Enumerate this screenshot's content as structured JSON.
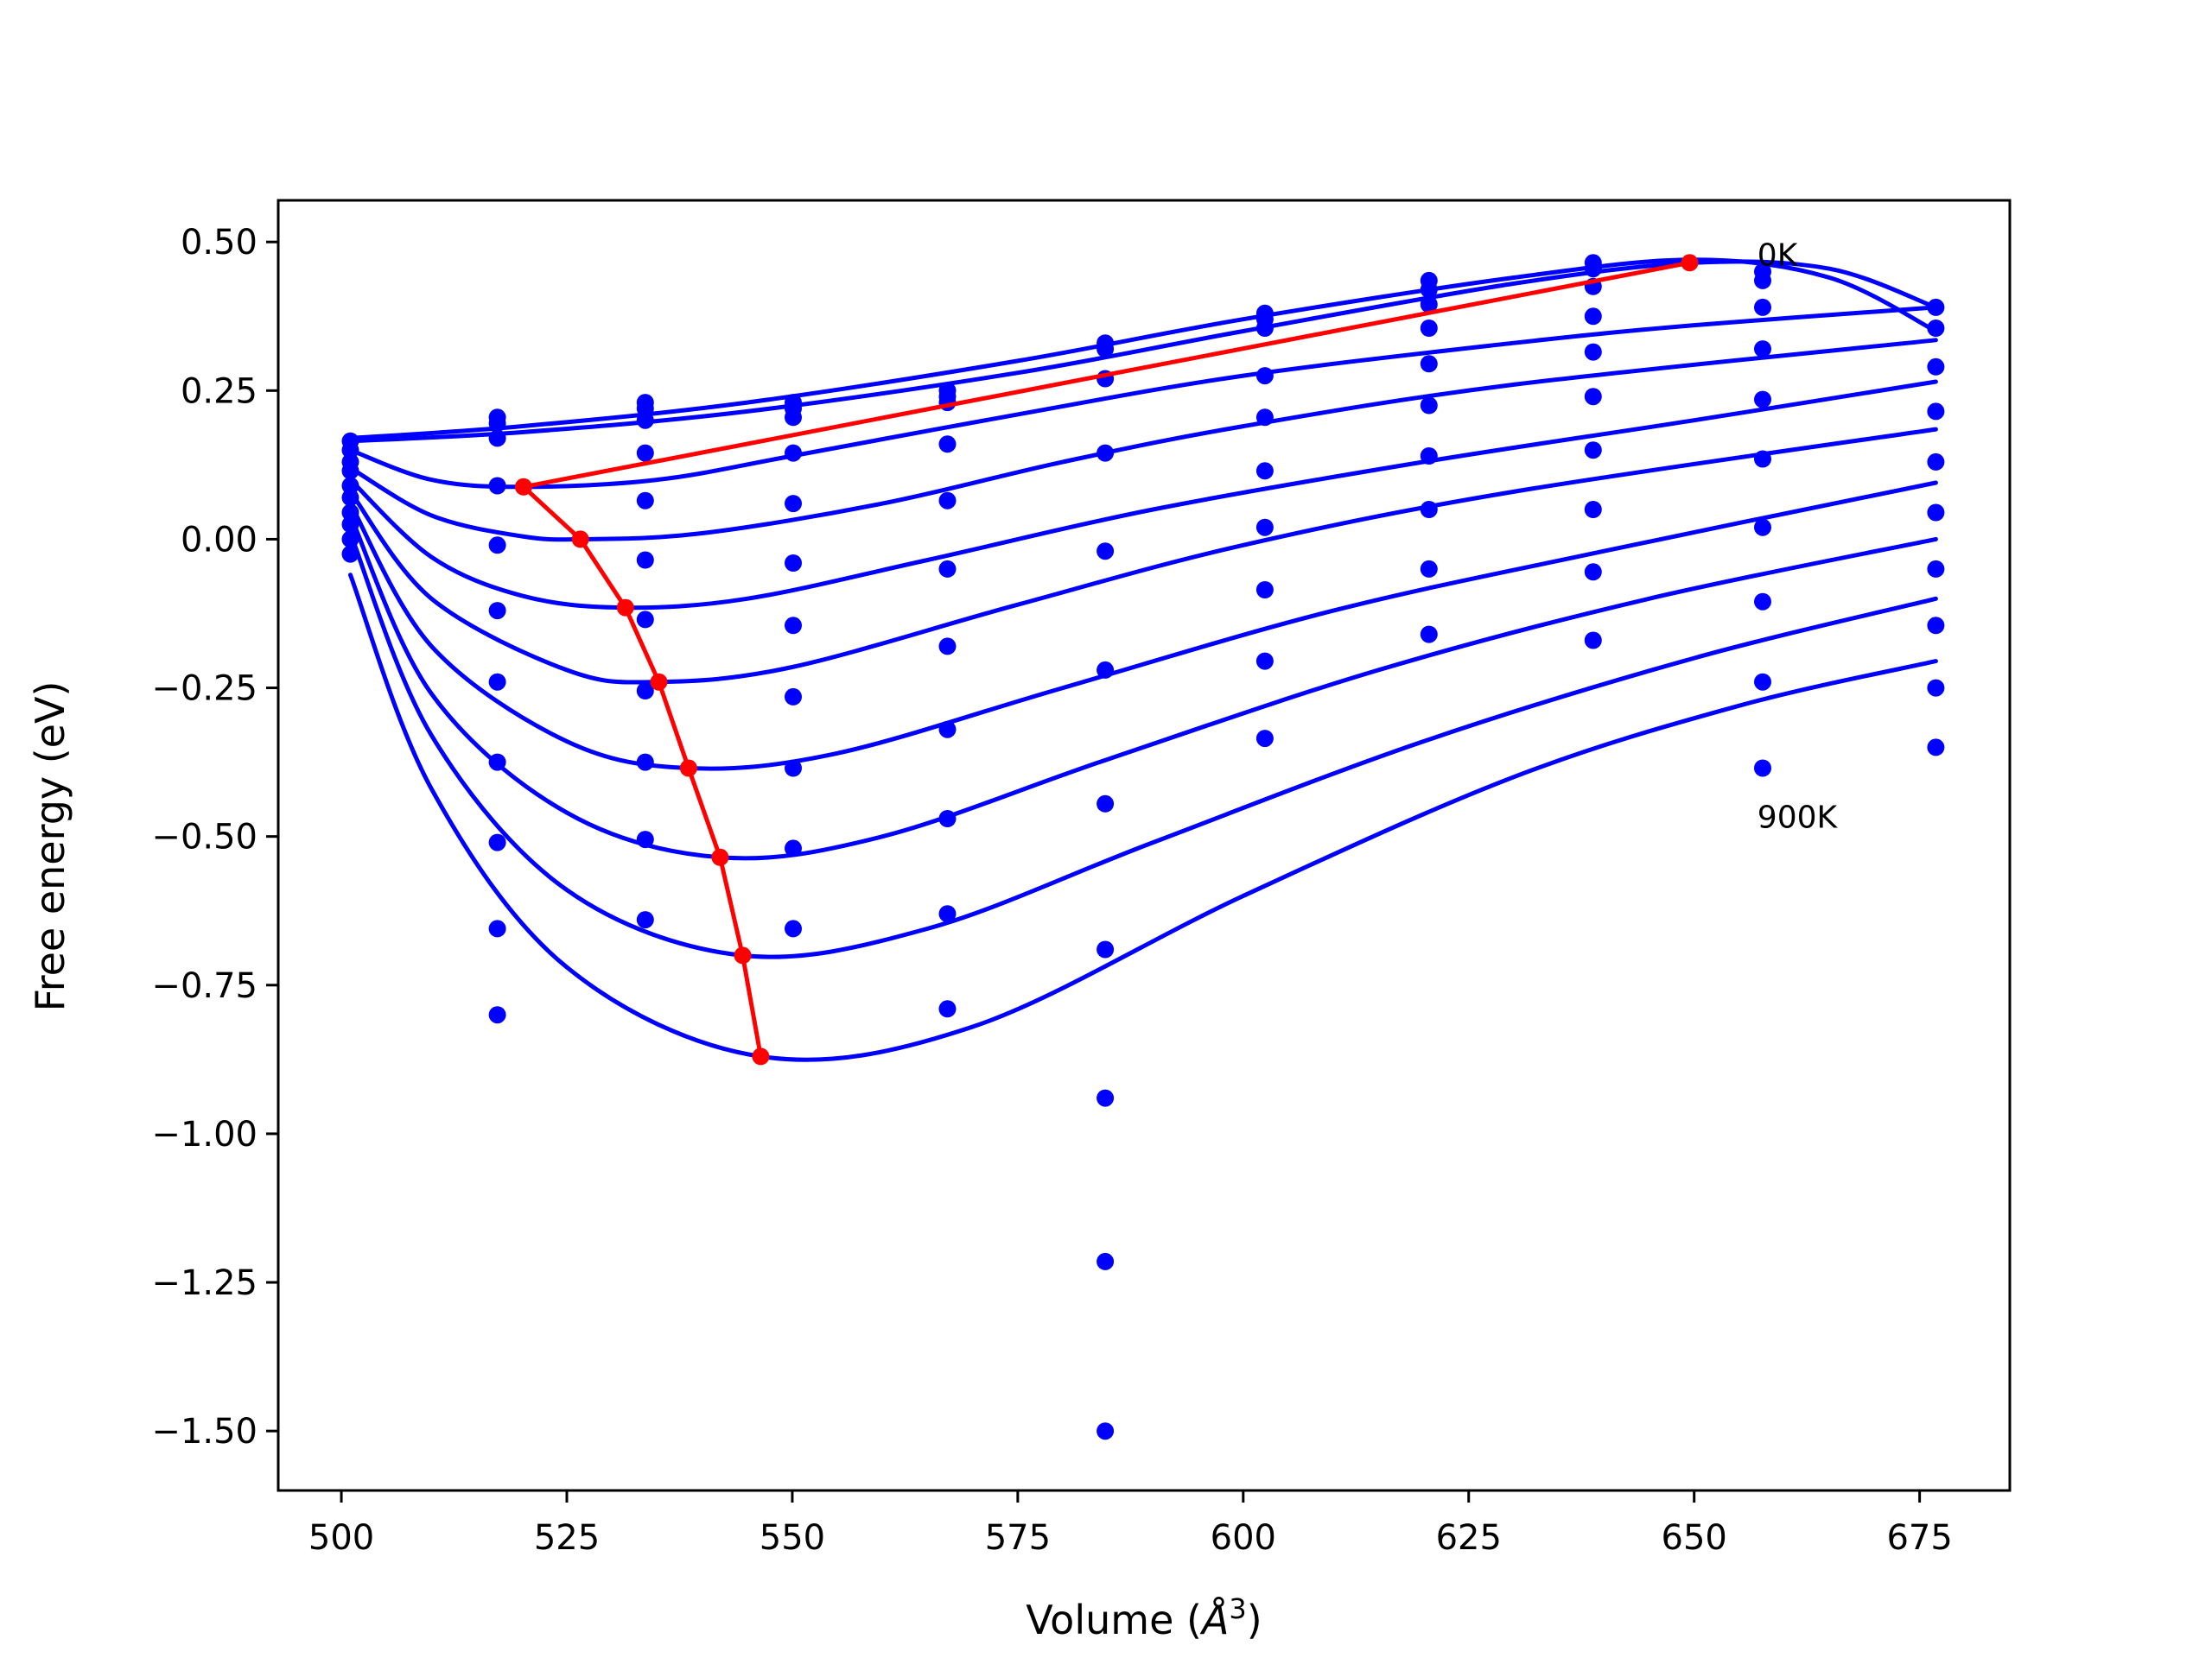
{
  "chart_data": {
    "type": "line",
    "xlabel_prefix": "Volume (",
    "xlabel_unit": "Å",
    "xlabel_exp": "3",
    "xlabel_suffix": ")",
    "ylabel": "Free energy (eV)",
    "xlim": [
      493,
      685
    ],
    "ylim": [
      -1.6,
      0.57
    ],
    "x_ticks": [
      500,
      525,
      550,
      575,
      600,
      625,
      650,
      675
    ],
    "y_ticks": [
      0.5,
      0.25,
      0.0,
      -0.25,
      -0.5,
      -0.75,
      -1.0,
      -1.25,
      -1.5
    ],
    "x_tick_labels": [
      "500",
      "525",
      "550",
      "575",
      "600",
      "625",
      "650",
      "675"
    ],
    "y_tick_labels": [
      "0.50",
      "0.25",
      "0.00",
      "−0.25",
      "−0.50",
      "−0.75",
      "−1.00",
      "−1.25",
      "−1.50"
    ],
    "grid": false,
    "colors": {
      "fit": "#0000ff",
      "points": "#0000ff",
      "minimum": "#ff0000"
    },
    "annotations": [
      {
        "text": "0K",
        "x": 657,
        "y": 0.46
      },
      {
        "text": "900K",
        "x": 657,
        "y": -0.485
      }
    ],
    "sample_volumes": [
      501,
      517.3,
      533.7,
      550.1,
      567.2,
      584.7,
      602.4,
      620.6,
      638.8,
      657.6,
      676.8
    ],
    "point_series": [
      {
        "values": [
          0.165,
          0.205,
          0.23,
          0.23,
          0.25,
          0.33,
          0.38,
          0.435,
          0.465,
          0.45,
          0.39
        ]
      },
      {
        "values": [
          0.15,
          0.195,
          0.22,
          0.22,
          0.24,
          0.32,
          0.37,
          0.42,
          0.455,
          0.435,
          0.355
        ]
      },
      {
        "values": [
          0.13,
          0.17,
          0.2,
          0.205,
          0.23,
          0.27,
          0.355,
          0.395,
          0.425,
          0.39,
          0.29
        ]
      },
      {
        "values": [
          0.115,
          0.09,
          0.145,
          0.145,
          0.16,
          0.145,
          0.275,
          0.355,
          0.375,
          0.32,
          0.215
        ]
      },
      {
        "values": [
          0.09,
          -0.01,
          0.065,
          0.06,
          0.065,
          -0.02,
          0.205,
          0.295,
          0.315,
          0.235,
          0.13
        ]
      },
      {
        "values": [
          0.07,
          -0.12,
          -0.035,
          -0.04,
          -0.05,
          -0.22,
          0.115,
          0.225,
          0.24,
          0.135,
          0.045
        ]
      },
      {
        "values": [
          0.045,
          -0.24,
          -0.135,
          -0.145,
          -0.18,
          -0.445,
          0.02,
          0.14,
          0.15,
          0.02,
          -0.05
        ]
      },
      {
        "values": [
          0.025,
          -0.375,
          -0.255,
          -0.265,
          -0.32,
          -0.69,
          -0.085,
          0.05,
          0.05,
          -0.105,
          -0.145
        ]
      },
      {
        "values": [
          0.0,
          -0.51,
          -0.375,
          -0.385,
          -0.47,
          -0.94,
          -0.205,
          -0.05,
          -0.055,
          -0.24,
          -0.25
        ]
      },
      {
        "values": [
          -0.025,
          -0.655,
          -0.505,
          -0.52,
          -0.63,
          -1.215,
          -0.335,
          -0.16,
          -0.17,
          -0.385,
          -0.35
        ]
      },
      {
        "values": [
          null,
          -0.8,
          -0.64,
          -0.655,
          -0.79,
          -1.5,
          null,
          null,
          null,
          null,
          null
        ]
      }
    ],
    "fit_curves": [
      {
        "x": [
          501,
          520,
          545,
          575,
          600,
          630,
          650,
          665,
          676.8
        ],
        "y": [
          0.17,
          0.19,
          0.23,
          0.3,
          0.37,
          0.44,
          0.47,
          0.44,
          0.35
        ]
      },
      {
        "x": [
          501,
          520,
          545,
          575,
          600,
          630,
          650,
          665,
          676.8
        ],
        "y": [
          0.165,
          0.18,
          0.215,
          0.28,
          0.35,
          0.43,
          0.465,
          0.455,
          0.39
        ]
      },
      {
        "x": [
          501,
          510,
          520,
          535,
          550,
          575,
          600,
          630,
          650,
          676.8
        ],
        "y": [
          0.15,
          0.1,
          0.088,
          0.1,
          0.14,
          0.21,
          0.275,
          0.33,
          0.36,
          0.39
        ]
      },
      {
        "x": [
          501,
          510,
          520,
          527,
          540,
          560,
          580,
          600,
          630,
          676.8
        ],
        "y": [
          0.12,
          0.04,
          0.005,
          0.0,
          0.01,
          0.06,
          0.13,
          0.19,
          0.26,
          0.335
        ]
      },
      {
        "x": [
          501,
          510,
          520,
          531,
          545,
          565,
          590,
          620,
          650,
          676.8
        ],
        "y": [
          0.1,
          -0.03,
          -0.095,
          -0.115,
          -0.1,
          -0.035,
          0.05,
          0.13,
          0.2,
          0.265
        ]
      },
      {
        "x": [
          501,
          510,
          525,
          535,
          550,
          575,
          600,
          630,
          676.8
        ],
        "y": [
          0.08,
          -0.1,
          -0.22,
          -0.24,
          -0.215,
          -0.11,
          -0.01,
          0.08,
          0.185
        ]
      },
      {
        "x": [
          501,
          510,
          525,
          538.5,
          555,
          580,
          610,
          640,
          676.8
        ],
        "y": [
          0.06,
          -0.18,
          -0.34,
          -0.385,
          -0.36,
          -0.25,
          -0.12,
          -0.02,
          0.095
        ]
      },
      {
        "x": [
          501,
          510,
          525,
          542,
          560,
          585,
          615,
          645,
          676.8
        ],
        "y": [
          0.04,
          -0.26,
          -0.46,
          -0.535,
          -0.5,
          -0.37,
          -0.22,
          -0.1,
          0.0
        ]
      },
      {
        "x": [
          501,
          510,
          525,
          544.5,
          565,
          590,
          620,
          650,
          676.8
        ],
        "y": [
          0.01,
          -0.33,
          -0.59,
          -0.7,
          -0.655,
          -0.51,
          -0.34,
          -0.2,
          -0.1
        ]
      },
      {
        "x": [
          501,
          510,
          525,
          546.5,
          570,
          600,
          630,
          655,
          676.8
        ],
        "y": [
          -0.06,
          -0.42,
          -0.72,
          -0.87,
          -0.82,
          -0.6,
          -0.4,
          -0.28,
          -0.205
        ]
      }
    ],
    "minima": {
      "x": [
        649.5,
        520.2,
        526.5,
        531.5,
        535.2,
        538.5,
        542,
        544.5,
        546.5
      ],
      "y": [
        0.465,
        0.088,
        0.0,
        -0.115,
        -0.24,
        -0.385,
        -0.535,
        -0.7,
        -0.87
      ]
    }
  }
}
